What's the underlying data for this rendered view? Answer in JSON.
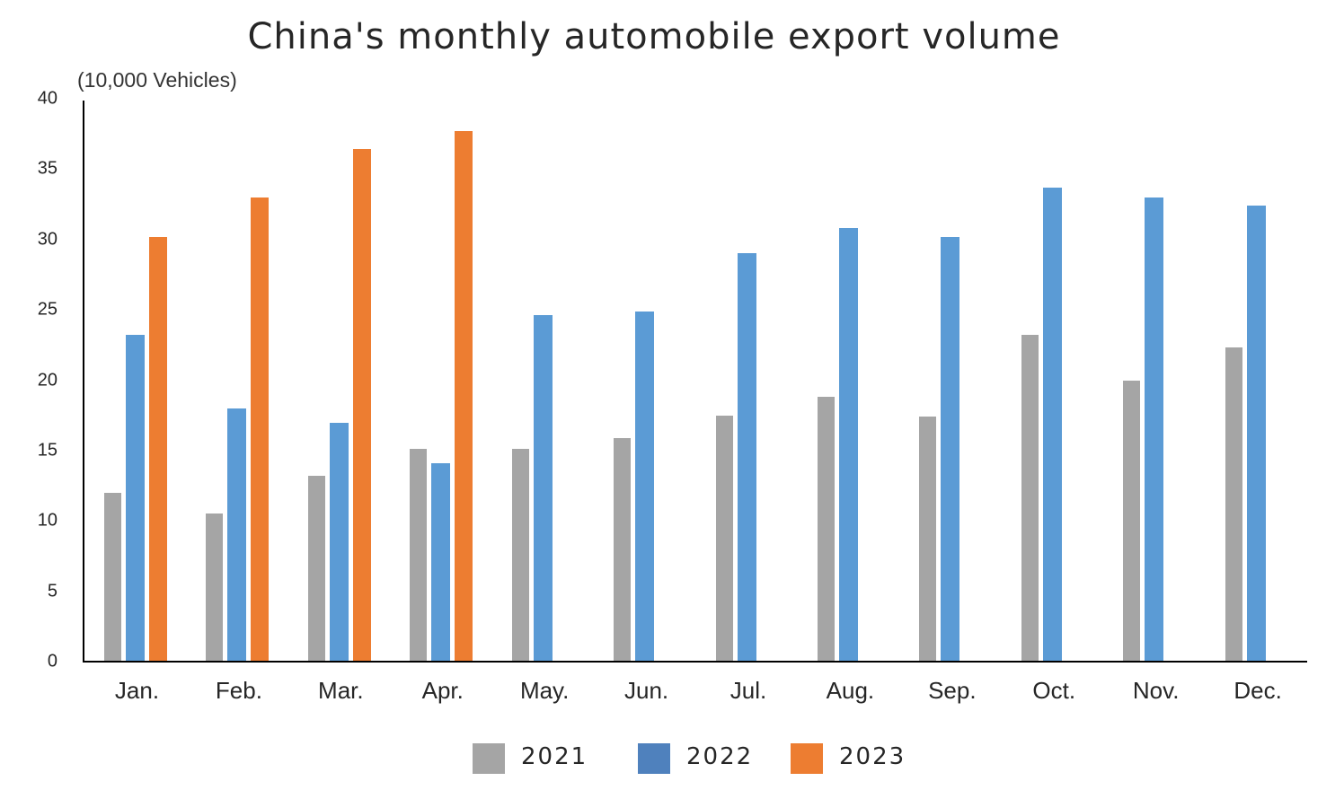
{
  "title": "China's monthly automobile export volume",
  "unit_label": "(10,000 Vehicles)",
  "yaxis": {
    "ticks": [
      "0",
      "5",
      "10",
      "15",
      "20",
      "25",
      "30",
      "35",
      "40"
    ]
  },
  "legend": [
    {
      "label": "2021",
      "color": "#A5A5A5"
    },
    {
      "label": "2022",
      "color": "#4F81BD"
    },
    {
      "label": "2023",
      "color": "#ED7D31"
    }
  ],
  "chart_data": {
    "type": "bar",
    "title": "China's monthly automobile export volume",
    "xlabel": "",
    "ylabel": "(10,000 Vehicles)",
    "ylim": [
      0,
      40
    ],
    "yticks": [
      0,
      5,
      10,
      15,
      20,
      25,
      30,
      35,
      40
    ],
    "grid": false,
    "legend_position": "bottom",
    "categories": [
      "Jan.",
      "Feb.",
      "Mar.",
      "Apr.",
      "May.",
      "Jun.",
      "Jul.",
      "Aug.",
      "Sep.",
      "Oct.",
      "Nov.",
      "Dec."
    ],
    "series": [
      {
        "name": "2021",
        "color": "#A5A5A5",
        "values": [
          12.0,
          10.5,
          13.2,
          15.1,
          15.1,
          15.9,
          17.5,
          18.8,
          17.4,
          23.2,
          20.0,
          22.3
        ]
      },
      {
        "name": "2022",
        "color": "#5B9BD5",
        "values": [
          23.2,
          18.0,
          17.0,
          14.1,
          24.6,
          24.9,
          29.0,
          30.8,
          30.2,
          33.7,
          33.0,
          32.4
        ]
      },
      {
        "name": "2023",
        "color": "#ED7D31",
        "values": [
          30.2,
          33.0,
          36.4,
          37.7,
          null,
          null,
          null,
          null,
          null,
          null,
          null,
          null
        ]
      }
    ]
  }
}
